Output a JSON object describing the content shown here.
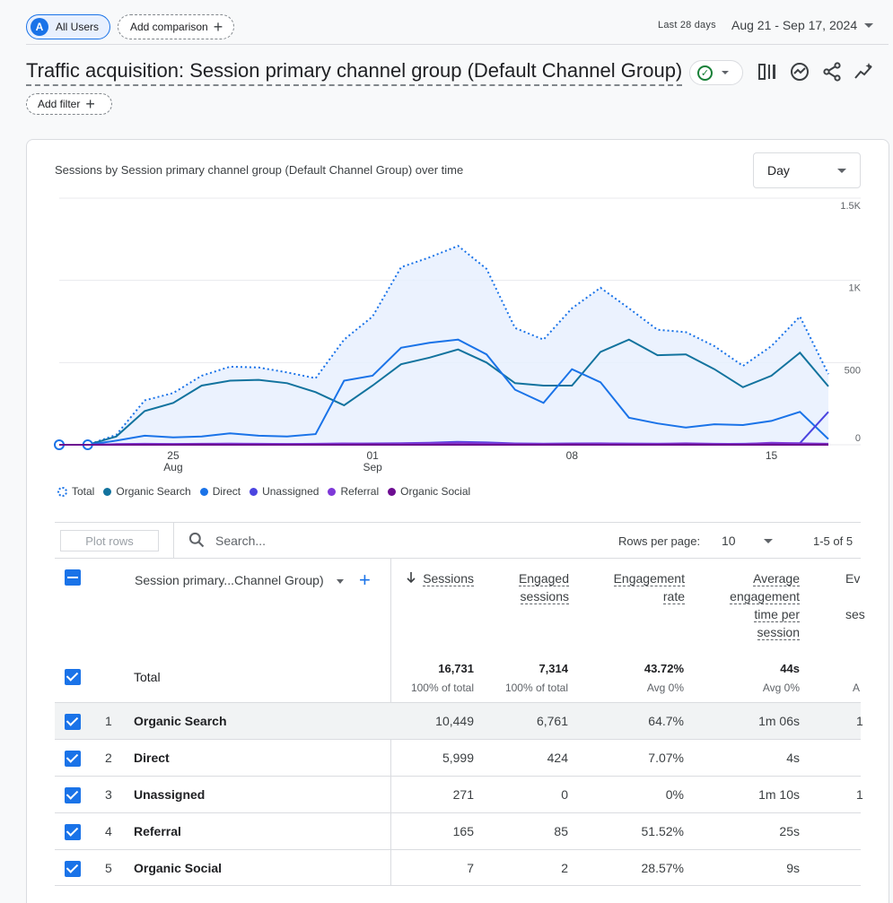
{
  "header": {
    "user_chip": "All Users",
    "user_avatar": "A",
    "add_comparison": "Add comparison",
    "date_label": "Last 28 days",
    "date_range": "Aug 21 - Sep 17, 2024",
    "title": "Traffic acquisition: Session primary channel group (Default Channel Group)",
    "add_filter": "Add filter",
    "toolbar_icons": [
      "compare-icon",
      "insights-icon",
      "share-icon",
      "trend-icon"
    ]
  },
  "chart_section": {
    "title": "Sessions by Session primary channel group (Default Channel Group) over time",
    "granularity": "Day"
  },
  "chart_data": {
    "type": "line",
    "title": "Sessions by Session primary channel group (Default Channel Group) over time",
    "x": [
      "Aug 21",
      "Aug 22",
      "Aug 23",
      "Aug 24",
      "Aug 25",
      "Aug 26",
      "Aug 27",
      "Aug 28",
      "Aug 29",
      "Aug 30",
      "Aug 31",
      "Sep 1",
      "Sep 2",
      "Sep 3",
      "Sep 4",
      "Sep 5",
      "Sep 6",
      "Sep 7",
      "Sep 8",
      "Sep 9",
      "Sep 10",
      "Sep 11",
      "Sep 12",
      "Sep 13",
      "Sep 14",
      "Sep 15",
      "Sep 16",
      "Sep 17"
    ],
    "x_ticks": [
      {
        "index": 4,
        "label": "25",
        "sub": "Aug"
      },
      {
        "index": 11,
        "label": "01",
        "sub": "Sep"
      },
      {
        "index": 18,
        "label": "08",
        "sub": ""
      },
      {
        "index": 25,
        "label": "15",
        "sub": ""
      }
    ],
    "ylim": [
      0,
      1500
    ],
    "y_ticks": [
      {
        "value": 0,
        "label": "0"
      },
      {
        "value": 500,
        "label": "500"
      },
      {
        "value": 1000,
        "label": "1K"
      },
      {
        "value": 1500,
        "label": "1.5K"
      }
    ],
    "grid": true,
    "legend_position": "bottom-left",
    "series": [
      {
        "name": "Total",
        "color": "#1a73e8",
        "style": "dotted-area",
        "values": [
          0,
          0,
          60,
          270,
          315,
          420,
          475,
          470,
          440,
          405,
          640,
          780,
          1080,
          1140,
          1210,
          1070,
          710,
          640,
          830,
          955,
          830,
          700,
          685,
          600,
          480,
          600,
          780,
          430
        ]
      },
      {
        "name": "Organic Search",
        "color": "#12739e",
        "values": [
          0,
          0,
          50,
          205,
          255,
          360,
          390,
          395,
          375,
          320,
          240,
          360,
          490,
          530,
          580,
          500,
          375,
          360,
          360,
          565,
          640,
          545,
          550,
          460,
          350,
          420,
          560,
          355
        ]
      },
      {
        "name": "Direct",
        "color": "#1a73e8",
        "values": [
          0,
          0,
          25,
          55,
          45,
          50,
          70,
          55,
          50,
          65,
          390,
          420,
          590,
          620,
          640,
          550,
          335,
          255,
          460,
          380,
          165,
          130,
          105,
          125,
          120,
          145,
          200,
          35
        ]
      },
      {
        "name": "Unassigned",
        "color": "#4b45e0",
        "values": [
          0,
          0,
          3,
          5,
          4,
          5,
          6,
          5,
          4,
          5,
          6,
          8,
          10,
          12,
          18,
          14,
          8,
          6,
          8,
          9,
          7,
          6,
          5,
          5,
          6,
          8,
          10,
          200
        ]
      },
      {
        "name": "Referral",
        "color": "#7e38d8",
        "values": [
          0,
          0,
          4,
          6,
          5,
          6,
          7,
          6,
          5,
          6,
          8,
          7,
          8,
          10,
          12,
          9,
          7,
          6,
          7,
          8,
          7,
          6,
          9,
          6,
          5,
          12,
          9,
          6
        ]
      },
      {
        "name": "Organic Social",
        "color": "#6d0d91",
        "values": [
          0,
          0,
          0,
          0,
          0,
          1,
          0,
          0,
          0,
          0,
          0,
          1,
          0,
          0,
          1,
          0,
          0,
          0,
          1,
          0,
          0,
          0,
          1,
          0,
          0,
          1,
          0,
          1
        ]
      }
    ]
  },
  "table": {
    "plot_rows": "Plot rows",
    "search_placeholder": "Search...",
    "rows_per_page_label": "Rows per page:",
    "rows_per_page": "10",
    "pagination": "1-5 of 5",
    "dimension_header": "Session primary...Channel Group)",
    "columns": {
      "sessions": "Sessions",
      "engaged_1": "Engaged",
      "engaged_2": "sessions",
      "rate_1": "Engagement",
      "rate_2": "rate",
      "avg_1": "Average",
      "avg_2": "engagement",
      "avg_3": "time per",
      "avg_4": "session",
      "ev_1": "Ev",
      "ev_2": "ses"
    },
    "total": {
      "label": "Total",
      "sessions": "16,731",
      "sessions_sub": "100% of total",
      "engaged": "7,314",
      "engaged_sub": "100% of total",
      "rate": "43.72%",
      "rate_sub": "Avg 0%",
      "avg": "44s",
      "avg_sub": "Avg 0%",
      "ev_sub": "A"
    },
    "rows": [
      {
        "num": "1",
        "name": "Organic Search",
        "sessions": "10,449",
        "engaged": "6,761",
        "rate": "64.7%",
        "avg": "1m 06s",
        "ev": "1"
      },
      {
        "num": "2",
        "name": "Direct",
        "sessions": "5,999",
        "engaged": "424",
        "rate": "7.07%",
        "avg": "4s",
        "ev": ""
      },
      {
        "num": "3",
        "name": "Unassigned",
        "sessions": "271",
        "engaged": "0",
        "rate": "0%",
        "avg": "1m 10s",
        "ev": "1"
      },
      {
        "num": "4",
        "name": "Referral",
        "sessions": "165",
        "engaged": "85",
        "rate": "51.52%",
        "avg": "25s",
        "ev": ""
      },
      {
        "num": "5",
        "name": "Organic Social",
        "sessions": "7",
        "engaged": "2",
        "rate": "28.57%",
        "avg": "9s",
        "ev": ""
      }
    ]
  }
}
